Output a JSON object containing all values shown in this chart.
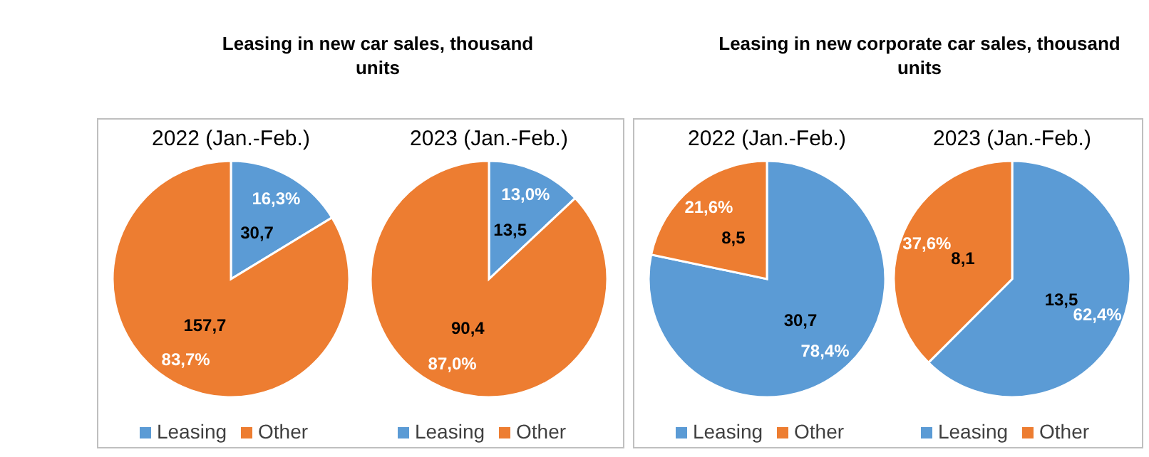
{
  "chart_data": [
    {
      "type": "pie",
      "title": "Leasing in new car sales, thousand units",
      "subtitle": "2022 (Jan.-Feb.)",
      "categories": [
        "Leasing",
        "Other"
      ],
      "values": [
        30.7,
        157.7
      ],
      "colors": [
        "#5b9bd5",
        "#ed7d31"
      ],
      "value_labels": [
        "30,7",
        "157,7"
      ],
      "annotations": [
        {
          "text": "16,3%",
          "x": "Leasing"
        },
        {
          "text": "83,7%",
          "x": "Other"
        }
      ],
      "legend": "bottom"
    },
    {
      "type": "pie",
      "subtitle": "2023 (Jan.-Feb.)",
      "categories": [
        "Leasing",
        "Other"
      ],
      "values": [
        13.5,
        90.4
      ],
      "colors": [
        "#5b9bd5",
        "#ed7d31"
      ],
      "value_labels": [
        "13,5",
        "90,4"
      ],
      "annotations": [
        {
          "text": "13,0%",
          "x": "Leasing"
        },
        {
          "text": "87,0%",
          "x": "Other"
        }
      ],
      "legend": "bottom"
    },
    {
      "type": "pie",
      "title": "Leasing in new corporate car sales, thousand units",
      "subtitle": "2022 (Jan.-Feb.)",
      "categories": [
        "Leasing",
        "Other"
      ],
      "values": [
        30.7,
        8.5
      ],
      "colors": [
        "#5b9bd5",
        "#ed7d31"
      ],
      "value_labels": [
        "30,7",
        "8,5"
      ],
      "annotations": [
        {
          "text": "78,4%",
          "x": "Leasing"
        },
        {
          "text": "21,6%",
          "x": "Other"
        }
      ],
      "legend": "bottom"
    },
    {
      "type": "pie",
      "subtitle": "2023 (Jan.-Feb.)",
      "categories": [
        "Leasing",
        "Other"
      ],
      "values": [
        13.5,
        8.1
      ],
      "colors": [
        "#5b9bd5",
        "#ed7d31"
      ],
      "value_labels": [
        "13,5",
        "8,1"
      ],
      "annotations": [
        {
          "text": "62,4%",
          "x": "Leasing"
        },
        {
          "text": "37,6%",
          "x": "Other"
        }
      ],
      "legend": "bottom"
    }
  ]
}
